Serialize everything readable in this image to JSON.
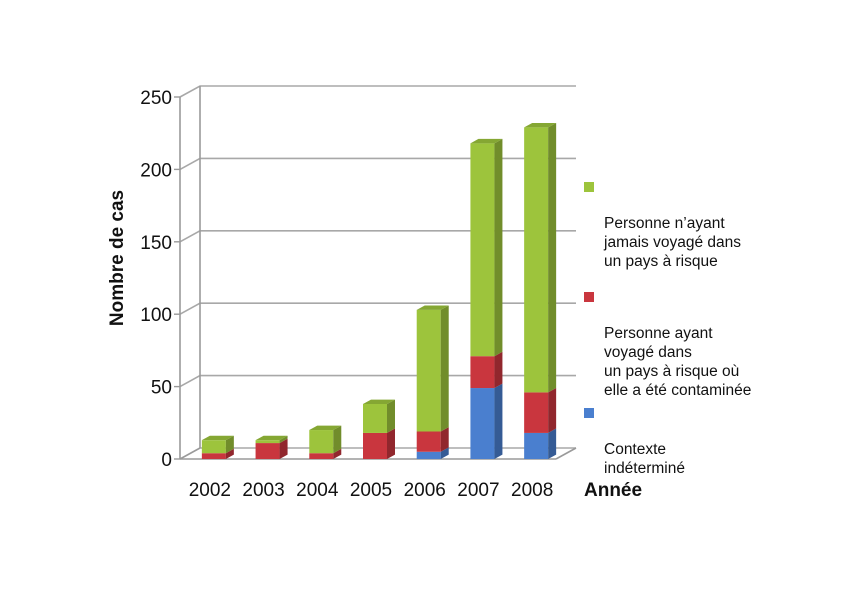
{
  "chart_data": {
    "type": "bar",
    "stacked": true,
    "three_d": true,
    "categories": [
      "2002",
      "2003",
      "2004",
      "2005",
      "2006",
      "2007",
      "2008"
    ],
    "series": [
      {
        "name": "Contexte\nindéterminé",
        "color": "#4a7fcf",
        "values": [
          0,
          0,
          0,
          0,
          5,
          49,
          18
        ]
      },
      {
        "name": "Personne ayant\nvoyagé dans\nun pays à risque où\nelle a été contaminée",
        "color": "#c9363e",
        "values": [
          4,
          11,
          4,
          18,
          14,
          22,
          28
        ]
      },
      {
        "name": "Personne n’ayant\njamais voyagé dans\nun pays à risque",
        "color": "#9dc43c",
        "values": [
          9,
          2,
          16,
          20,
          84,
          147,
          183
        ]
      }
    ],
    "ylim": [
      0,
      250
    ],
    "yticks": [
      0,
      50,
      100,
      150,
      200,
      250
    ],
    "ylabel": "Nombre de cas",
    "xlabel": "Année",
    "grid": true,
    "legend_position": "right"
  }
}
